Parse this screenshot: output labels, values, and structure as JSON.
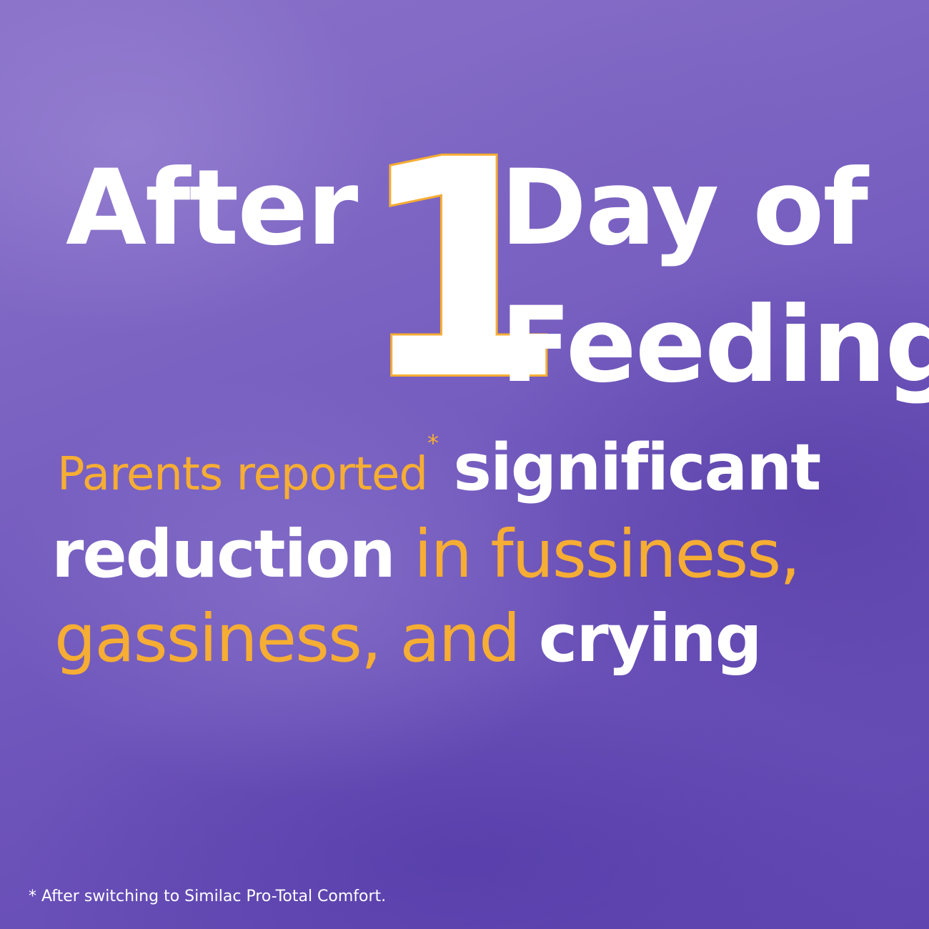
{
  "headline": {
    "after": "After",
    "number": "1",
    "day_of": "Day of",
    "feeding": "Feeding"
  },
  "claim": {
    "parents_reported": "Parents reported",
    "asterisk": "*",
    "significant": "significant",
    "reduction": "reduction",
    "in_fussiness": "in fussiness,",
    "gassiness_and": "gassiness, and",
    "crying": "crying"
  },
  "footnote": "* After switching to Similac Pro-Total Comfort.",
  "colors": {
    "background": "#7a5fc0",
    "highlight": "#f6ad33",
    "text": "#ffffff"
  }
}
